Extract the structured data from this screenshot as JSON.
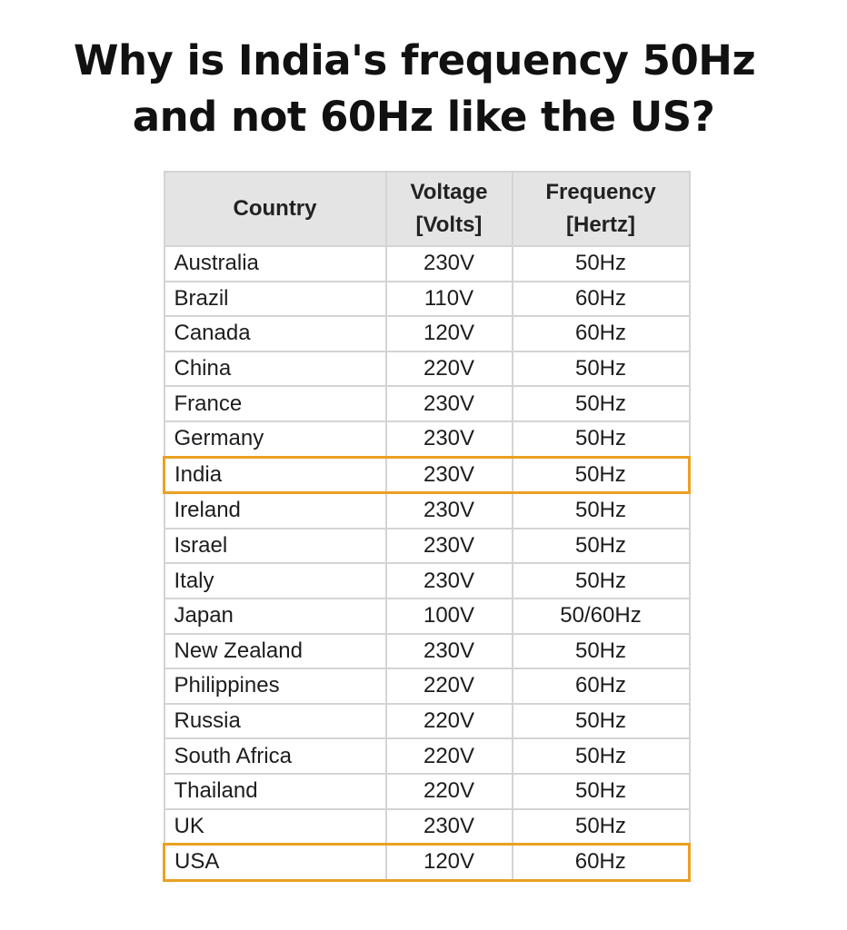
{
  "headline": {
    "line1": "Why is India's frequency 50Hz",
    "line2": "and not 60Hz like the US?"
  },
  "table": {
    "headers": {
      "country": "Country",
      "voltage_line1": "Voltage",
      "voltage_line2": "[Volts]",
      "frequency_line1": "Frequency",
      "frequency_line2": "[Hertz]"
    },
    "rows": [
      {
        "country": "Australia",
        "voltage": "230V",
        "frequency": "50Hz",
        "highlighted": false
      },
      {
        "country": "Brazil",
        "voltage": "110V",
        "frequency": "60Hz",
        "highlighted": false
      },
      {
        "country": "Canada",
        "voltage": "120V",
        "frequency": "60Hz",
        "highlighted": false
      },
      {
        "country": "China",
        "voltage": "220V",
        "frequency": "50Hz",
        "highlighted": false
      },
      {
        "country": "France",
        "voltage": "230V",
        "frequency": "50Hz",
        "highlighted": false
      },
      {
        "country": "Germany",
        "voltage": "230V",
        "frequency": "50Hz",
        "highlighted": false
      },
      {
        "country": "India",
        "voltage": "230V",
        "frequency": "50Hz",
        "highlighted": true
      },
      {
        "country": "Ireland",
        "voltage": "230V",
        "frequency": "50Hz",
        "highlighted": false
      },
      {
        "country": "Israel",
        "voltage": "230V",
        "frequency": "50Hz",
        "highlighted": false
      },
      {
        "country": "Italy",
        "voltage": "230V",
        "frequency": "50Hz",
        "highlighted": false
      },
      {
        "country": "Japan",
        "voltage": "100V",
        "frequency": "50/60Hz",
        "highlighted": false
      },
      {
        "country": "New Zealand",
        "voltage": "230V",
        "frequency": "50Hz",
        "highlighted": false
      },
      {
        "country": "Philippines",
        "voltage": "220V",
        "frequency": "60Hz",
        "highlighted": false
      },
      {
        "country": "Russia",
        "voltage": "220V",
        "frequency": "50Hz",
        "highlighted": false
      },
      {
        "country": "South Africa",
        "voltage": "220V",
        "frequency": "50Hz",
        "highlighted": false
      },
      {
        "country": "Thailand",
        "voltage": "220V",
        "frequency": "50Hz",
        "highlighted": false
      },
      {
        "country": "UK",
        "voltage": "230V",
        "frequency": "50Hz",
        "highlighted": false
      },
      {
        "country": "USA",
        "voltage": "120V",
        "frequency": "60Hz",
        "highlighted": true
      }
    ]
  },
  "colors": {
    "highlight_border": "#eba022",
    "header_background": "#e4e4e4",
    "grid_line": "#d4d4d4",
    "text": "#1d1d1d"
  }
}
